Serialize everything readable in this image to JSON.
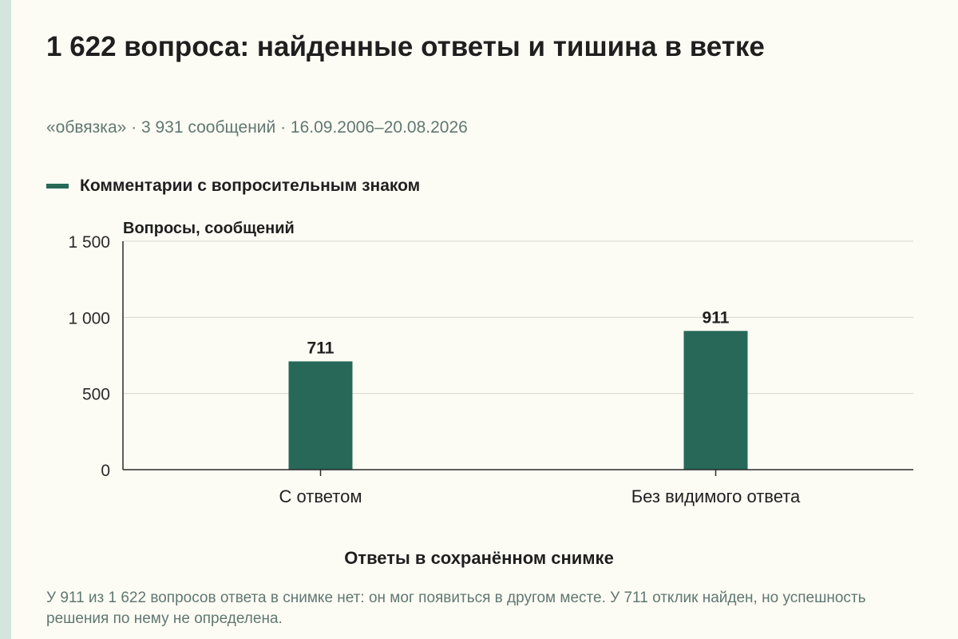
{
  "header": {
    "title": "1 622 вопроса: найденные ответы и тишина в ветке",
    "subtitle": "«обвязка» · 3 931 сообщений · 16.09.2006–20.08.2026"
  },
  "legend": {
    "label": "Комментарии с вопросительным знаком",
    "color": "#276858"
  },
  "chart_data": {
    "type": "bar",
    "categories": [
      "С ответом",
      "Без видимого ответа"
    ],
    "series": [
      {
        "name": "Комментарии с вопросительным знаком",
        "values": [
          711,
          911
        ]
      }
    ],
    "data_labels": [
      "711",
      "911"
    ],
    "ylabel": "Вопросы, сообщений",
    "xlabel": "Ответы в сохранённом снимке",
    "ylim": [
      0,
      1500
    ],
    "yticks": [
      0,
      500,
      1000,
      1500
    ],
    "ytick_labels": [
      "0",
      "500",
      "1 000",
      "1 500"
    ],
    "grid": true,
    "legend_position": "top-left",
    "bar_color": "#276858"
  },
  "note": "У 911 из 1 622 вопросов ответа в снимке нет: он мог появиться в другом месте. У 711 отклик найден, но успешность решения по нему не определена."
}
